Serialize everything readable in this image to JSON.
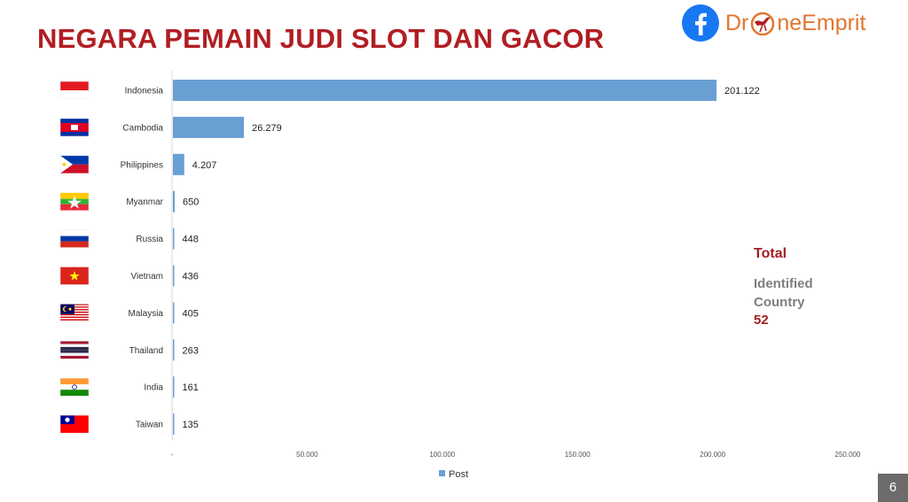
{
  "title": "NEGARA PEMAIN JUDI SLOT DAN GACOR",
  "brand": {
    "logo_icon": "facebook-icon",
    "name_prefix": "Dr",
    "name_suffix": "neEmprit",
    "mark_icon": "bird-icon"
  },
  "colors": {
    "title": "#b01e23",
    "bar": "#6a9fd4",
    "facebook": "#1877f2",
    "brand": "#e2762f"
  },
  "chart_data": {
    "type": "bar",
    "orientation": "horizontal",
    "categories": [
      "Indonesia",
      "Cambodia",
      "Philippines",
      "Myanmar",
      "Russia",
      "Vietnam",
      "Malaysia",
      "Thailand",
      "India",
      "Taiwan"
    ],
    "flag_icons": [
      "indonesia-flag-icon",
      "cambodia-flag-icon",
      "philippines-flag-icon",
      "myanmar-flag-icon",
      "russia-flag-icon",
      "vietnam-flag-icon",
      "malaysia-flag-icon",
      "thailand-flag-icon",
      "india-flag-icon",
      "taiwan-flag-icon"
    ],
    "series": [
      {
        "name": "Post",
        "values": [
          201122,
          26279,
          4207,
          650,
          448,
          436,
          405,
          263,
          161,
          135
        ],
        "value_labels": [
          "201.122",
          "26.279",
          "4.207",
          "650",
          "448",
          "436",
          "405",
          "263",
          "161",
          "135"
        ]
      }
    ],
    "xlim": [
      0,
      250000
    ],
    "x_ticks": [
      0,
      50000,
      100000,
      150000,
      200000,
      250000
    ],
    "x_tick_labels": [
      "-",
      "50.000",
      "100.000",
      "150.000",
      "200.000",
      "250.000"
    ],
    "grid": false,
    "legend": "bottom"
  },
  "summary": {
    "total_label": "Total",
    "identified_line1": "Identified",
    "identified_line2": "Country",
    "count": "52"
  },
  "page_number": "6"
}
